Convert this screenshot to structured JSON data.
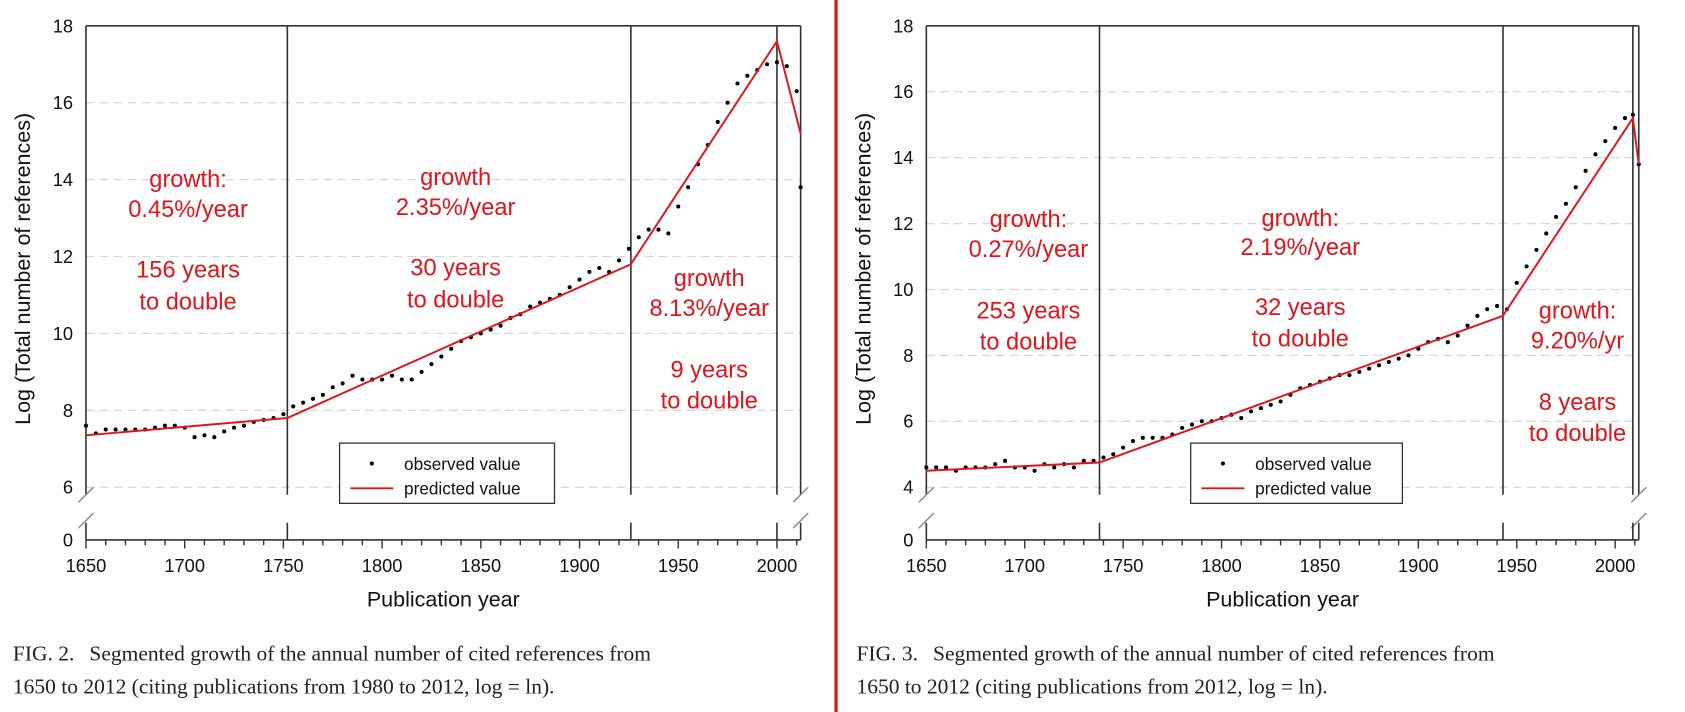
{
  "divider_color": "#e3131b",
  "chart_data": [
    {
      "type": "scatter",
      "figure_label": "FIG. 2.",
      "caption_line1": "Segmented growth of the annual number of cited references from",
      "caption_line2": "1650 to 2012 (citing publications from 1980 to 2012, log = ln).",
      "xlabel": "Publication year",
      "ylabel": "Log (Total number of references)",
      "xlim": [
        1650,
        2012
      ],
      "ylim": [
        6,
        18
      ],
      "y_axis_break": true,
      "x_ticks": [
        "1650",
        "1700",
        "1750",
        "1800",
        "1850",
        "1900",
        "1950",
        "2000"
      ],
      "y_ticks": [
        "0",
        "6",
        "8",
        "10",
        "12",
        "14",
        "16",
        "18"
      ],
      "grid": "horizontal-dashed",
      "legend": {
        "placement": "bottom-center",
        "observed": "observed value",
        "predicted": "predicted value"
      },
      "breakpoints": [
        1752,
        1926,
        2000
      ],
      "annotations": [
        [
          "growth:",
          "0.45%/year",
          "156 years",
          "to double"
        ],
        [
          "growth",
          "2.35%/year",
          "30 years",
          "to double"
        ],
        [
          "growth",
          "8.13%/year",
          "9 years",
          "to double"
        ]
      ],
      "predicted": {
        "x": [
          1650,
          1752,
          1926,
          2000,
          2012
        ],
        "y": [
          7.35,
          7.8,
          11.8,
          17.6,
          15.2
        ]
      },
      "observed": {
        "x": [
          1650,
          1655,
          1660,
          1665,
          1670,
          1675,
          1680,
          1685,
          1690,
          1695,
          1700,
          1705,
          1710,
          1715,
          1720,
          1725,
          1730,
          1735,
          1740,
          1745,
          1750,
          1755,
          1760,
          1765,
          1770,
          1775,
          1780,
          1785,
          1790,
          1795,
          1800,
          1805,
          1810,
          1815,
          1820,
          1825,
          1830,
          1835,
          1840,
          1845,
          1850,
          1855,
          1860,
          1865,
          1870,
          1875,
          1880,
          1885,
          1890,
          1895,
          1900,
          1905,
          1910,
          1915,
          1920,
          1925,
          1930,
          1935,
          1940,
          1945,
          1950,
          1955,
          1960,
          1965,
          1970,
          1975,
          1980,
          1985,
          1990,
          1995,
          2000,
          2005,
          2010,
          2012
        ],
        "y": [
          7.6,
          7.4,
          7.5,
          7.5,
          7.5,
          7.5,
          7.5,
          7.55,
          7.6,
          7.6,
          7.55,
          7.3,
          7.35,
          7.3,
          7.45,
          7.55,
          7.6,
          7.7,
          7.75,
          7.8,
          7.9,
          8.1,
          8.2,
          8.3,
          8.4,
          8.6,
          8.7,
          8.9,
          8.8,
          8.8,
          8.8,
          8.9,
          8.8,
          8.8,
          9.0,
          9.2,
          9.4,
          9.6,
          9.8,
          9.9,
          10.0,
          10.1,
          10.2,
          10.4,
          10.5,
          10.7,
          10.8,
          10.9,
          11.0,
          11.2,
          11.4,
          11.6,
          11.7,
          11.6,
          11.9,
          12.2,
          12.5,
          12.7,
          12.7,
          12.6,
          13.3,
          13.8,
          14.4,
          14.9,
          15.5,
          16.0,
          16.5,
          16.7,
          16.85,
          17.0,
          17.05,
          16.95,
          16.3,
          13.8
        ]
      }
    },
    {
      "type": "scatter",
      "figure_label": "FIG. 3.",
      "caption_line1": "Segmented growth of the annual number of cited references from",
      "caption_line2": "1650 to 2012 (citing publications from 2012, log = ln).",
      "xlabel": "Publication year",
      "ylabel": "Log (Total number of references)",
      "xlim": [
        1650,
        2012
      ],
      "ylim": [
        4,
        18
      ],
      "y_axis_break": true,
      "x_ticks": [
        "1650",
        "1700",
        "1750",
        "1800",
        "1850",
        "1900",
        "1950",
        "2000"
      ],
      "y_ticks": [
        "0",
        "4",
        "6",
        "8",
        "10",
        "12",
        "14",
        "16",
        "18"
      ],
      "grid": "horizontal-dashed",
      "legend": {
        "placement": "bottom-center",
        "observed": "observed value",
        "predicted": "predicted value"
      },
      "breakpoints": [
        1738,
        1943,
        2009
      ],
      "annotations": [
        [
          "growth:",
          "0.27%/year",
          "253 years",
          "to double"
        ],
        [
          "growth:",
          "2.19%/year",
          "32 years",
          "to double"
        ],
        [
          "growth:",
          "9.20%/yr",
          "8 years",
          "to double"
        ]
      ],
      "predicted": {
        "x": [
          1650,
          1738,
          1943,
          2009,
          2012
        ],
        "y": [
          4.5,
          4.75,
          9.2,
          15.2,
          13.8
        ]
      },
      "observed": {
        "x": [
          1650,
          1655,
          1660,
          1665,
          1670,
          1675,
          1680,
          1685,
          1690,
          1695,
          1700,
          1705,
          1710,
          1715,
          1720,
          1725,
          1730,
          1735,
          1740,
          1745,
          1750,
          1755,
          1760,
          1765,
          1770,
          1775,
          1780,
          1785,
          1790,
          1795,
          1800,
          1805,
          1810,
          1815,
          1820,
          1825,
          1830,
          1835,
          1840,
          1845,
          1850,
          1855,
          1860,
          1865,
          1870,
          1875,
          1880,
          1885,
          1890,
          1895,
          1900,
          1905,
          1910,
          1915,
          1920,
          1925,
          1930,
          1935,
          1940,
          1945,
          1950,
          1955,
          1960,
          1965,
          1970,
          1975,
          1980,
          1985,
          1990,
          1995,
          2000,
          2005,
          2009,
          2012
        ],
        "y": [
          4.6,
          4.6,
          4.6,
          4.5,
          4.6,
          4.6,
          4.6,
          4.7,
          4.8,
          4.6,
          4.6,
          4.5,
          4.7,
          4.6,
          4.7,
          4.6,
          4.8,
          4.8,
          4.9,
          5.0,
          5.2,
          5.4,
          5.5,
          5.5,
          5.5,
          5.6,
          5.8,
          5.9,
          6.0,
          6.0,
          6.1,
          6.2,
          6.1,
          6.3,
          6.4,
          6.5,
          6.6,
          6.8,
          7.0,
          7.1,
          7.2,
          7.3,
          7.4,
          7.4,
          7.5,
          7.6,
          7.7,
          7.8,
          7.9,
          8.0,
          8.2,
          8.4,
          8.5,
          8.4,
          8.6,
          8.9,
          9.2,
          9.4,
          9.5,
          9.4,
          10.2,
          10.7,
          11.2,
          11.7,
          12.2,
          12.6,
          13.1,
          13.6,
          14.1,
          14.5,
          14.9,
          15.2,
          15.3,
          13.8
        ]
      }
    }
  ]
}
